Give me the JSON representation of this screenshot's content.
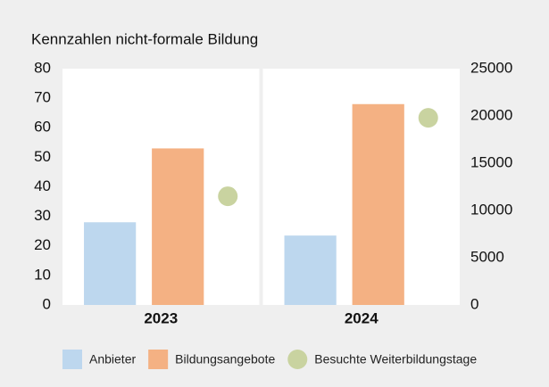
{
  "chart_data": {
    "type": "bar",
    "title": "Kennzahlen nicht-formale Bildung",
    "categories": [
      "2023",
      "2024"
    ],
    "series": [
      {
        "name": "Anbieter",
        "color": "#bdd7ee",
        "values": [
          28,
          23.5
        ]
      },
      {
        "name": "Bildungsangebote",
        "color": "#f4b183",
        "values": [
          53,
          68
        ]
      },
      {
        "name": "Besuchte Weiterbildungstage",
        "color": "#c9d3a0",
        "type": "scatter",
        "axis": "y2",
        "values": [
          11500,
          19800
        ]
      }
    ],
    "ylim": [
      0,
      80
    ],
    "yticks": [
      0,
      10,
      20,
      30,
      40,
      50,
      60,
      70,
      80
    ],
    "y2lim": [
      0,
      25000
    ],
    "y2ticks": [
      0,
      5000,
      10000,
      15000,
      20000,
      25000
    ]
  }
}
